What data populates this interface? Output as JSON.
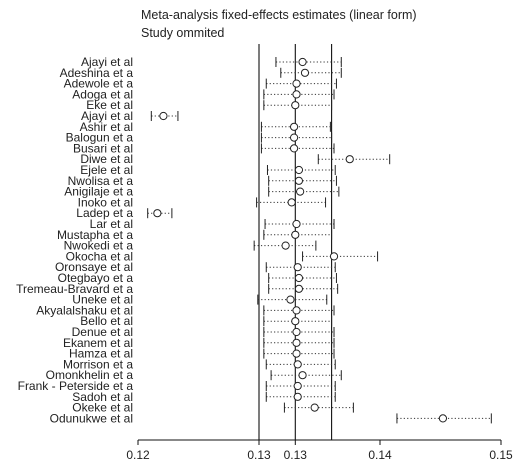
{
  "chart_data": {
    "type": "forest",
    "title": "Meta-analysis fixed-effects estimates (linear form)",
    "subtitle": "Study ommited",
    "xlim": [
      0.12,
      0.15
    ],
    "x_ticks": [
      0.12,
      0.13,
      0.133,
      0.14,
      0.15
    ],
    "x_tick_labels": [
      "0.12",
      "0.13",
      "0.13",
      "0.14",
      "0.15"
    ],
    "reference_lines": [
      0.13,
      0.133,
      0.136
    ],
    "studies": [
      {
        "label": "Ajayi et al",
        "estimate": 0.1336,
        "lower": 0.1314,
        "upper": 0.1368
      },
      {
        "label": "Adeshina et a",
        "estimate": 0.1338,
        "lower": 0.1318,
        "upper": 0.1368
      },
      {
        "label": "Adewole et a",
        "estimate": 0.1331,
        "lower": 0.1306,
        "upper": 0.1364
      },
      {
        "label": "Adoga et al",
        "estimate": 0.1331,
        "lower": 0.1304,
        "upper": 0.1362
      },
      {
        "label": "Eke et al",
        "estimate": 0.133,
        "lower": 0.1304,
        "upper": 0.136
      },
      {
        "label": "Ajayi et al",
        "estimate": 0.1221,
        "lower": 0.1211,
        "upper": 0.1233
      },
      {
        "label": "Ashir et al",
        "estimate": 0.1329,
        "lower": 0.1302,
        "upper": 0.1359
      },
      {
        "label": "Balogun et a",
        "estimate": 0.1329,
        "lower": 0.1302,
        "upper": 0.136
      },
      {
        "label": "Busari et al",
        "estimate": 0.1329,
        "lower": 0.1302,
        "upper": 0.1362
      },
      {
        "label": "Diwe et al",
        "estimate": 0.1375,
        "lower": 0.1349,
        "upper": 0.1408
      },
      {
        "label": "Ejele et al",
        "estimate": 0.1333,
        "lower": 0.1307,
        "upper": 0.1363
      },
      {
        "label": "Nwolisa et a",
        "estimate": 0.1333,
        "lower": 0.1308,
        "upper": 0.1364
      },
      {
        "label": "Anigilaje et a",
        "estimate": 0.1334,
        "lower": 0.1308,
        "upper": 0.1366
      },
      {
        "label": "Inoko et al",
        "estimate": 0.1327,
        "lower": 0.1298,
        "upper": 0.1355
      },
      {
        "label": "Ladep et a",
        "estimate": 0.1216,
        "lower": 0.1208,
        "upper": 0.1228
      },
      {
        "label": "Lar et al",
        "estimate": 0.1331,
        "lower": 0.1305,
        "upper": 0.1362
      },
      {
        "label": "Mustapha et a",
        "estimate": 0.133,
        "lower": 0.1304,
        "upper": 0.136
      },
      {
        "label": "Nwokedi et a",
        "estimate": 0.1322,
        "lower": 0.1296,
        "upper": 0.1347
      },
      {
        "label": "Okocha et al",
        "estimate": 0.1362,
        "lower": 0.1336,
        "upper": 0.1398
      },
      {
        "label": "Oronsaye et al",
        "estimate": 0.1332,
        "lower": 0.1306,
        "upper": 0.1363
      },
      {
        "label": "Otegbayo et a",
        "estimate": 0.1333,
        "lower": 0.1308,
        "upper": 0.1364
      },
      {
        "label": "Tremeau-Bravard et a",
        "estimate": 0.1333,
        "lower": 0.1308,
        "upper": 0.1365
      },
      {
        "label": "Uneke et al",
        "estimate": 0.1326,
        "lower": 0.1299,
        "upper": 0.1356
      },
      {
        "label": "Akyalalshaku et al",
        "estimate": 0.1331,
        "lower": 0.1304,
        "upper": 0.1362
      },
      {
        "label": "Bello et al",
        "estimate": 0.133,
        "lower": 0.1304,
        "upper": 0.136
      },
      {
        "label": "Denue et al",
        "estimate": 0.1331,
        "lower": 0.1304,
        "upper": 0.1362
      },
      {
        "label": "Ekanem et al",
        "estimate": 0.1331,
        "lower": 0.1304,
        "upper": 0.1362
      },
      {
        "label": "Hamza et al",
        "estimate": 0.1331,
        "lower": 0.1304,
        "upper": 0.1362
      },
      {
        "label": "Morrison et a",
        "estimate": 0.1332,
        "lower": 0.1306,
        "upper": 0.1363
      },
      {
        "label": "Omonkhelin et a",
        "estimate": 0.1336,
        "lower": 0.131,
        "upper": 0.1368
      },
      {
        "label": "Frank - Peterside et a",
        "estimate": 0.1332,
        "lower": 0.1306,
        "upper": 0.1363
      },
      {
        "label": "Sadoh et al",
        "estimate": 0.1332,
        "lower": 0.1306,
        "upper": 0.1363
      },
      {
        "label": "Okeke et al",
        "estimate": 0.1346,
        "lower": 0.1321,
        "upper": 0.1378
      },
      {
        "label": "Odunukwe et al",
        "estimate": 0.1452,
        "lower": 0.1414,
        "upper": 0.1492
      }
    ]
  }
}
